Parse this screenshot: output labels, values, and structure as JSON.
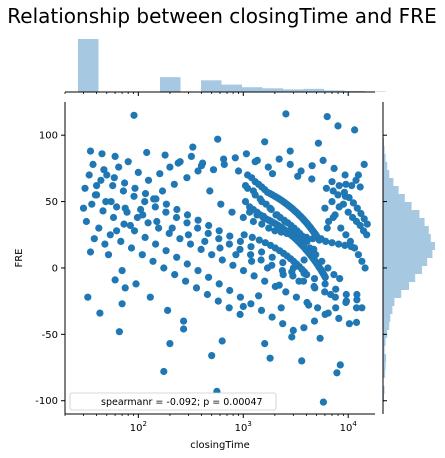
{
  "chart_data": {
    "type": "scatter",
    "title": "Relationship between closingTime and FRE",
    "xlabel": "closingTime",
    "ylabel": "FRE",
    "xscale": "log",
    "xlim": [
      20,
      18000
    ],
    "ylim": [
      -110,
      125
    ],
    "x_ticks": [
      {
        "value": 100,
        "base": "10",
        "exp": "2"
      },
      {
        "value": 1000,
        "base": "10",
        "exp": "3"
      },
      {
        "value": 10000,
        "base": "10",
        "exp": "4"
      }
    ],
    "y_ticks": [
      -100,
      -50,
      0,
      50,
      100
    ],
    "legend": {
      "text": "spearmanr = -0.092; p = 0.00047",
      "placement": "lower-left"
    },
    "grid": false,
    "point_color": "#1f77b4",
    "hist_color": "#a6c8e0",
    "points": [
      [
        91,
        115
      ],
      [
        2550,
        116
      ],
      [
        6300,
        114
      ],
      [
        8000,
        107
      ],
      [
        11500,
        104
      ],
      [
        570,
        97
      ],
      [
        5200,
        94
      ],
      [
        1600,
        95
      ],
      [
        330,
        91
      ],
      [
        2800,
        88
      ],
      [
        650,
        82
      ],
      [
        1300,
        80
      ],
      [
        35,
        88
      ],
      [
        45,
        86
      ],
      [
        60,
        84
      ],
      [
        120,
        87
      ],
      [
        180,
        85
      ],
      [
        240,
        79
      ],
      [
        400,
        77
      ],
      [
        900,
        73
      ],
      [
        1900,
        71
      ],
      [
        3300,
        69
      ],
      [
        4500,
        67
      ],
      [
        7000,
        65
      ],
      [
        9500,
        63
      ],
      [
        13000,
        61
      ],
      [
        40,
        55
      ],
      [
        55,
        50
      ],
      [
        75,
        45
      ],
      [
        110,
        40
      ],
      [
        150,
        35
      ],
      [
        210,
        30
      ],
      [
        300,
        25
      ],
      [
        430,
        20
      ],
      [
        600,
        15
      ],
      [
        850,
        10
      ],
      [
        1200,
        5
      ],
      [
        1700,
        0
      ],
      [
        2400,
        -5
      ],
      [
        3400,
        -10
      ],
      [
        4800,
        -15
      ],
      [
        6800,
        -20
      ],
      [
        9600,
        -25
      ],
      [
        13500,
        -30
      ],
      [
        38,
        22
      ],
      [
        52,
        10
      ],
      [
        70,
        -2
      ],
      [
        95,
        -12
      ],
      [
        130,
        -22
      ],
      [
        190,
        -32
      ],
      [
        270,
        -40
      ],
      [
        70,
        -27
      ],
      [
        33,
        -22
      ],
      [
        66,
        -48
      ],
      [
        43,
        -34
      ],
      [
        60,
        -9
      ],
      [
        75,
        -15
      ],
      [
        270,
        -46
      ],
      [
        500,
        -66
      ],
      [
        630,
        -55
      ],
      [
        560,
        -93
      ],
      [
        1800,
        -68
      ],
      [
        3600,
        -70
      ],
      [
        5800,
        -101
      ],
      [
        8400,
        -73
      ],
      [
        7800,
        -79
      ],
      [
        5400,
        -53
      ],
      [
        2900,
        -52
      ],
      [
        1600,
        -57
      ],
      [
        200,
        -57
      ],
      [
        175,
        -78
      ],
      [
        2300,
        -30
      ],
      [
        4200,
        -28
      ],
      [
        12000,
        -41
      ],
      [
        1000,
        -29
      ],
      [
        1400,
        -21
      ],
      [
        2200,
        -13
      ],
      [
        2900,
        -3
      ],
      [
        3800,
        6
      ],
      [
        4700,
        14
      ],
      [
        5500,
        22
      ],
      [
        6300,
        30
      ],
      [
        7200,
        38
      ],
      [
        8200,
        46
      ],
      [
        9400,
        54
      ],
      [
        10800,
        62
      ],
      [
        12500,
        70
      ],
      [
        14200,
        78
      ],
      [
        35,
        12
      ],
      [
        48,
        18
      ],
      [
        62,
        28
      ],
      [
        84,
        32
      ],
      [
        105,
        44
      ],
      [
        140,
        52
      ],
      [
        170,
        58
      ],
      [
        220,
        63
      ],
      [
        290,
        68
      ],
      [
        370,
        73
      ],
      [
        480,
        58
      ],
      [
        610,
        48
      ],
      [
        780,
        42
      ],
      [
        1000,
        38
      ],
      [
        1250,
        35
      ],
      [
        1500,
        33
      ],
      [
        1750,
        30
      ],
      [
        2000,
        28
      ],
      [
        2300,
        27
      ],
      [
        2600,
        26
      ],
      [
        3000,
        25
      ],
      [
        3500,
        24
      ],
      [
        4000,
        23
      ],
      [
        4600,
        22
      ],
      [
        5300,
        21
      ],
      [
        6100,
        20
      ],
      [
        7000,
        19
      ],
      [
        8100,
        18
      ],
      [
        9300,
        17
      ],
      [
        10700,
        16
      ],
      [
        1100,
        60
      ],
      [
        1300,
        55
      ],
      [
        1500,
        50
      ],
      [
        1800,
        45
      ],
      [
        2100,
        40
      ],
      [
        2500,
        35
      ],
      [
        2900,
        30
      ],
      [
        3300,
        25
      ],
      [
        3800,
        20
      ],
      [
        4300,
        15
      ],
      [
        4900,
        10
      ],
      [
        5600,
        5
      ],
      [
        6400,
        0
      ],
      [
        7300,
        -5
      ],
      [
        8300,
        -8
      ],
      [
        1050,
        62
      ],
      [
        1250,
        58
      ],
      [
        1450,
        52
      ],
      [
        1650,
        48
      ],
      [
        1850,
        44
      ],
      [
        2050,
        40
      ],
      [
        2250,
        38
      ],
      [
        2450,
        36
      ],
      [
        2650,
        34
      ],
      [
        2850,
        32
      ],
      [
        3050,
        30
      ],
      [
        3250,
        28
      ],
      [
        3450,
        26
      ],
      [
        3650,
        24
      ],
      [
        3850,
        22
      ],
      [
        4050,
        20
      ],
      [
        1150,
        42
      ],
      [
        1350,
        40
      ],
      [
        1550,
        38
      ],
      [
        1750,
        36
      ],
      [
        1950,
        34
      ],
      [
        2150,
        32
      ],
      [
        2350,
        30
      ],
      [
        2550,
        28
      ],
      [
        2750,
        26
      ],
      [
        2950,
        24
      ],
      [
        3150,
        22
      ],
      [
        3350,
        20
      ],
      [
        3550,
        18
      ],
      [
        3750,
        16
      ],
      [
        3950,
        14
      ],
      [
        4150,
        12
      ],
      [
        1020,
        25
      ],
      [
        1220,
        23
      ],
      [
        1420,
        21
      ],
      [
        1620,
        19
      ],
      [
        1820,
        17
      ],
      [
        2020,
        15
      ],
      [
        2220,
        13
      ],
      [
        2420,
        11
      ],
      [
        2620,
        9
      ],
      [
        2820,
        7
      ],
      [
        3020,
        5
      ],
      [
        3220,
        3
      ],
      [
        3420,
        1
      ],
      [
        3620,
        -1
      ],
      [
        3820,
        -3
      ],
      [
        4020,
        -5
      ],
      [
        30,
        45
      ],
      [
        40,
        62
      ],
      [
        50,
        70
      ],
      [
        65,
        76
      ],
      [
        80,
        80
      ],
      [
        100,
        72
      ],
      [
        125,
        66
      ],
      [
        160,
        71
      ],
      [
        200,
        76
      ],
      [
        250,
        80
      ],
      [
        320,
        84
      ],
      [
        410,
        79
      ],
      [
        520,
        74
      ],
      [
        660,
        78
      ],
      [
        840,
        83
      ],
      [
        1070,
        86
      ],
      [
        1360,
        81
      ],
      [
        1730,
        76
      ],
      [
        2200,
        82
      ],
      [
        2800,
        78
      ],
      [
        3560,
        73
      ],
      [
        4530,
        77
      ],
      [
        5760,
        81
      ],
      [
        7330,
        75
      ],
      [
        9330,
        70
      ],
      [
        11870,
        66
      ],
      [
        32,
        35
      ],
      [
        42,
        30
      ],
      [
        54,
        25
      ],
      [
        68,
        20
      ],
      [
        86,
        15
      ],
      [
        109,
        10
      ],
      [
        138,
        5
      ],
      [
        175,
        0
      ],
      [
        222,
        -5
      ],
      [
        282,
        -10
      ],
      [
        358,
        -15
      ],
      [
        455,
        -20
      ],
      [
        578,
        -25
      ],
      [
        734,
        -30
      ],
      [
        932,
        -35
      ],
      [
        31,
        60
      ],
      [
        39,
        55
      ],
      [
        49,
        50
      ],
      [
        62,
        46
      ],
      [
        78,
        42
      ],
      [
        98,
        38
      ],
      [
        124,
        34
      ],
      [
        156,
        30
      ],
      [
        197,
        26
      ],
      [
        249,
        22
      ],
      [
        314,
        18
      ],
      [
        396,
        14
      ],
      [
        500,
        10
      ],
      [
        631,
        6
      ],
      [
        796,
        2
      ],
      [
        1004,
        -2
      ],
      [
        1267,
        -6
      ],
      [
        1599,
        -10
      ],
      [
        2017,
        -14
      ],
      [
        2545,
        -18
      ],
      [
        3211,
        -22
      ],
      [
        4052,
        -26
      ],
      [
        5112,
        -30
      ],
      [
        6450,
        -34
      ],
      [
        8138,
        -38
      ],
      [
        10268,
        -42
      ],
      [
        36,
        48
      ],
      [
        46,
        43
      ],
      [
        58,
        38
      ],
      [
        73,
        33
      ],
      [
        92,
        28
      ],
      [
        116,
        23
      ],
      [
        146,
        18
      ],
      [
        184,
        13
      ],
      [
        232,
        8
      ],
      [
        293,
        3
      ],
      [
        370,
        -2
      ],
      [
        467,
        -7
      ],
      [
        589,
        -12
      ],
      [
        743,
        -17
      ],
      [
        938,
        -22
      ],
      [
        1183,
        -27
      ],
      [
        1493,
        -32
      ],
      [
        1884,
        -37
      ],
      [
        2377,
        -42
      ],
      [
        3000,
        -47
      ],
      [
        3785,
        -45
      ],
      [
        4776,
        -40
      ],
      [
        6026,
        -35
      ],
      [
        7604,
        -30
      ],
      [
        9595,
        -25
      ],
      [
        12106,
        -20
      ],
      [
        34,
        70
      ],
      [
        44,
        66
      ],
      [
        57,
        62
      ],
      [
        72,
        58
      ],
      [
        91,
        54
      ],
      [
        115,
        50
      ],
      [
        145,
        46
      ],
      [
        183,
        42
      ],
      [
        231,
        38
      ],
      [
        291,
        34
      ],
      [
        367,
        30
      ],
      [
        463,
        26
      ],
      [
        584,
        22
      ],
      [
        737,
        18
      ],
      [
        930,
        14
      ],
      [
        1173,
        10
      ],
      [
        1480,
        6
      ],
      [
        1868,
        2
      ],
      [
        2357,
        -2
      ],
      [
        2974,
        -6
      ],
      [
        3752,
        -10
      ],
      [
        4734,
        -14
      ],
      [
        5973,
        -18
      ],
      [
        7536,
        -22
      ],
      [
        9509,
        -26
      ],
      [
        11998,
        -30
      ],
      [
        37,
        78
      ],
      [
        47,
        74
      ],
      [
        59,
        68
      ],
      [
        74,
        64
      ],
      [
        93,
        60
      ],
      [
        117,
        56
      ],
      [
        147,
        52
      ],
      [
        185,
        48
      ],
      [
        233,
        44
      ],
      [
        294,
        40
      ],
      [
        371,
        36
      ],
      [
        468,
        32
      ],
      [
        590,
        28
      ],
      [
        744,
        24
      ],
      [
        939,
        20
      ],
      [
        1184,
        16
      ],
      [
        1494,
        12
      ],
      [
        1885,
        8
      ],
      [
        2378,
        4
      ],
      [
        3001,
        0
      ],
      [
        3786,
        -4
      ],
      [
        4777,
        -8
      ],
      [
        6027,
        -12
      ],
      [
        7605,
        -16
      ],
      [
        9596,
        -20
      ],
      [
        12107,
        -24
      ],
      [
        1050,
        50
      ],
      [
        1150,
        46
      ],
      [
        1250,
        44
      ],
      [
        1350,
        42
      ],
      [
        1450,
        40
      ],
      [
        1550,
        39
      ],
      [
        1650,
        37
      ],
      [
        1750,
        36
      ],
      [
        1850,
        35
      ],
      [
        1950,
        34
      ],
      [
        2050,
        33
      ],
      [
        2150,
        32
      ],
      [
        2250,
        31
      ],
      [
        2350,
        30
      ],
      [
        2450,
        29
      ],
      [
        2550,
        28
      ],
      [
        2650,
        27
      ],
      [
        2750,
        26
      ],
      [
        2850,
        25
      ],
      [
        2950,
        24
      ],
      [
        3050,
        23
      ],
      [
        3150,
        22
      ],
      [
        3250,
        21
      ],
      [
        3350,
        20
      ],
      [
        3450,
        19
      ],
      [
        3550,
        18
      ],
      [
        3650,
        17
      ],
      [
        3750,
        16
      ],
      [
        3850,
        15
      ],
      [
        3950,
        14
      ],
      [
        4050,
        13
      ],
      [
        4150,
        12
      ],
      [
        4250,
        11
      ],
      [
        4350,
        10
      ],
      [
        4450,
        9
      ],
      [
        4550,
        8
      ],
      [
        4650,
        7
      ],
      [
        4750,
        6
      ],
      [
        4850,
        5
      ],
      [
        4950,
        4
      ],
      [
        5050,
        3
      ],
      [
        5150,
        2
      ],
      [
        5250,
        1
      ],
      [
        5350,
        0
      ],
      [
        5450,
        -1
      ],
      [
        5550,
        -2
      ],
      [
        5650,
        -3
      ],
      [
        5750,
        -4
      ],
      [
        5850,
        -5
      ],
      [
        5950,
        -6
      ],
      [
        6050,
        -7
      ],
      [
        1100,
        70
      ],
      [
        1200,
        68
      ],
      [
        1300,
        65
      ],
      [
        1400,
        63
      ],
      [
        1500,
        61
      ],
      [
        1600,
        59
      ],
      [
        1700,
        57
      ],
      [
        1800,
        56
      ],
      [
        1900,
        55
      ],
      [
        2000,
        54
      ],
      [
        2100,
        53
      ],
      [
        2200,
        52
      ],
      [
        2300,
        51
      ],
      [
        2400,
        50
      ],
      [
        2500,
        49
      ],
      [
        2600,
        48
      ],
      [
        2700,
        47
      ],
      [
        2800,
        46
      ],
      [
        2900,
        45
      ],
      [
        3000,
        44
      ],
      [
        3100,
        43
      ],
      [
        3200,
        42
      ],
      [
        3300,
        41
      ],
      [
        3400,
        40
      ],
      [
        3500,
        39
      ],
      [
        3600,
        38
      ],
      [
        3700,
        37
      ],
      [
        3800,
        36
      ],
      [
        3900,
        35
      ],
      [
        4000,
        34
      ],
      [
        4100,
        33
      ],
      [
        4200,
        32
      ],
      [
        4300,
        31
      ],
      [
        4400,
        30
      ],
      [
        4500,
        29
      ],
      [
        4600,
        28
      ],
      [
        4700,
        27
      ],
      [
        4800,
        26
      ],
      [
        4900,
        25
      ],
      [
        5000,
        24
      ],
      [
        6000,
        45
      ],
      [
        7000,
        50
      ],
      [
        8000,
        55
      ],
      [
        9000,
        48
      ],
      [
        10000,
        42
      ],
      [
        11000,
        38
      ],
      [
        12000,
        35
      ],
      [
        13000,
        32
      ],
      [
        14000,
        28
      ],
      [
        15000,
        25
      ],
      [
        6500,
        35
      ],
      [
        7500,
        40
      ],
      [
        8500,
        30
      ],
      [
        9500,
        25
      ],
      [
        10500,
        20
      ],
      [
        11500,
        15
      ],
      [
        12500,
        10
      ],
      [
        13500,
        5
      ],
      [
        14500,
        0
      ],
      [
        6200,
        60
      ],
      [
        7200,
        58
      ],
      [
        8200,
        62
      ],
      [
        9200,
        57
      ],
      [
        10200,
        53
      ],
      [
        11200,
        49
      ],
      [
        12200,
        45
      ],
      [
        13200,
        41
      ],
      [
        14200,
        37
      ],
      [
        15200,
        33
      ]
    ]
  },
  "top_hist": [
    1.0,
    0.0,
    0.0,
    0.0,
    0.28,
    0.0,
    0.22,
    0.14,
    0.09,
    0.07,
    0.05,
    0.06,
    0.03,
    0.02,
    0.01
  ],
  "right_hist": [
    0.02,
    0.03,
    0.01,
    0.04,
    0.05,
    0.06,
    0.03,
    0.05,
    0.08,
    0.12,
    0.14,
    0.18,
    0.22,
    0.35,
    0.5,
    0.62,
    0.75,
    0.85,
    0.95,
    1.0,
    0.92,
    0.88,
    0.8,
    0.7,
    0.55,
    0.42,
    0.3,
    0.2,
    0.12,
    0.08,
    0.05,
    0.03,
    0.02,
    0.01
  ]
}
